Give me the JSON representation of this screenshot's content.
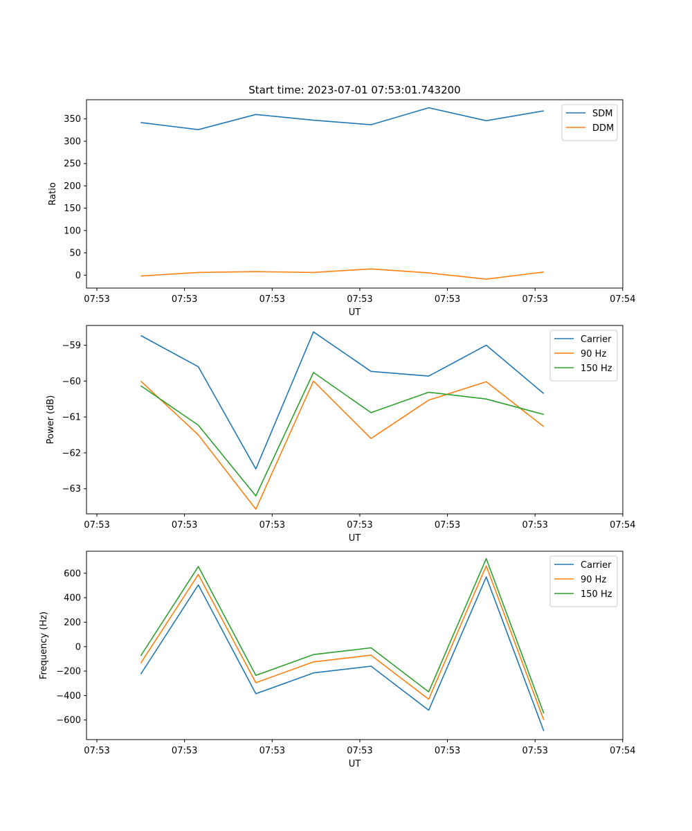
{
  "figure": {
    "title": "Start time: 2023-07-01 07:53:01.743200"
  },
  "chart_data": [
    {
      "type": "line",
      "xlabel": "UT",
      "ylabel": "Ratio",
      "x_tick_labels": [
        "07:53",
        "07:53",
        "07:53",
        "07:53",
        "07:53",
        "07:53",
        "07:54"
      ],
      "ylim": [
        -29,
        393
      ],
      "y_ticks": [
        0,
        50,
        100,
        150,
        200,
        250,
        300,
        350
      ],
      "legend_position": "top-right",
      "series": [
        {
          "name": "SDM",
          "color": "#1f77b4",
          "values": [
            342,
            326,
            360,
            347,
            337,
            375,
            346,
            368
          ]
        },
        {
          "name": "DDM",
          "color": "#ff7f0e",
          "values": [
            -2,
            6,
            8,
            6,
            14,
            5,
            -9,
            7
          ]
        }
      ]
    },
    {
      "type": "line",
      "xlabel": "UT",
      "ylabel": "Power (dB)",
      "x_tick_labels": [
        "07:53",
        "07:53",
        "07:53",
        "07:53",
        "07:53",
        "07:53",
        "07:54"
      ],
      "ylim": [
        -63.7,
        -58.45
      ],
      "y_ticks": [
        -63,
        -62,
        -61,
        -60,
        -59
      ],
      "legend_position": "top-right",
      "series": [
        {
          "name": "Carrier",
          "color": "#1f77b4",
          "values": [
            -58.73,
            -59.6,
            -62.45,
            -58.63,
            -59.73,
            -59.86,
            -59.0,
            -60.35
          ]
        },
        {
          "name": "90 Hz",
          "color": "#ff7f0e",
          "values": [
            -60.0,
            -61.5,
            -63.57,
            -60.0,
            -61.6,
            -60.53,
            -60.02,
            -61.27
          ]
        },
        {
          "name": "150 Hz",
          "color": "#2ca02c",
          "values": [
            -60.13,
            -61.23,
            -63.2,
            -59.76,
            -60.88,
            -60.31,
            -60.5,
            -60.93
          ]
        }
      ]
    },
    {
      "type": "line",
      "xlabel": "UT",
      "ylabel": "Frequency (Hz)",
      "x_tick_labels": [
        "07:53",
        "07:53",
        "07:53",
        "07:53",
        "07:53",
        "07:53",
        "07:54"
      ],
      "ylim": [
        -760,
        780
      ],
      "y_ticks": [
        -600,
        -400,
        -200,
        0,
        200,
        400,
        600
      ],
      "legend_position": "top-right",
      "series": [
        {
          "name": "Carrier",
          "color": "#1f77b4",
          "values": [
            -225,
            505,
            -385,
            -215,
            -160,
            -520,
            570,
            -690
          ]
        },
        {
          "name": "90 Hz",
          "color": "#ff7f0e",
          "values": [
            -135,
            590,
            -295,
            -125,
            -70,
            -430,
            660,
            -600
          ]
        },
        {
          "name": "150 Hz",
          "color": "#2ca02c",
          "values": [
            -75,
            655,
            -235,
            -65,
            -10,
            -370,
            720,
            -545
          ]
        }
      ]
    }
  ]
}
